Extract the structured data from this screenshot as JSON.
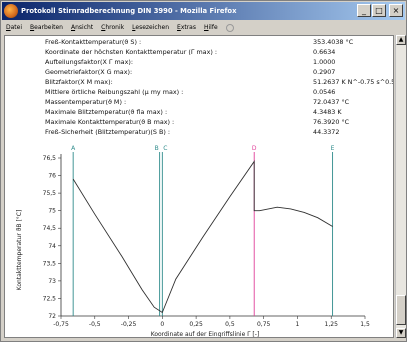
{
  "window": {
    "title": "Protokoll Stirnradberechnung DIN 3990 - Mozilla Firefox",
    "buttons": {
      "minimize": "_",
      "maximize": "□",
      "close": "×"
    }
  },
  "menu": [
    {
      "label": "Datei",
      "ul": "D",
      "rest": "atei"
    },
    {
      "label": "Bearbeiten",
      "ul": "B",
      "rest": "earbeiten"
    },
    {
      "label": "Ansicht",
      "ul": "A",
      "rest": "nsicht"
    },
    {
      "label": "Chronik",
      "ul": "C",
      "rest": "hronik"
    },
    {
      "label": "Lesezeichen",
      "ul": "L",
      "rest": "esezeichen"
    },
    {
      "label": "Extras",
      "ul": "E",
      "rest": "xtras"
    },
    {
      "label": "Hilfe",
      "ul": "H",
      "rest": "ilfe"
    }
  ],
  "results": [
    {
      "label": "Freß-Kontakttemperatur(ϑ S) :",
      "value": "353.4038 °C"
    },
    {
      "label": "Koordinate der höchsten Kontakttemperatur (Γ max) :",
      "value": "0.6634"
    },
    {
      "label": "Aufteilungsfaktor(X Γ max):",
      "value": "1.0000"
    },
    {
      "label": "Geometriefaktor(X G max):",
      "value": "0.2907"
    },
    {
      "label": "Blitzfaktor(X M max):",
      "value": "51.2637 K N^-0.75 s^0.5 m^-0.5 mm"
    },
    {
      "label": "Mittlere örtliche Reibungszahl (μ my max) :",
      "value": "0.0546"
    },
    {
      "label": "Massentemperatur(ϑ M) :",
      "value": "72.0437 °C"
    },
    {
      "label": "Maximale Blitztemperatur(ϑ fla max) :",
      "value": "4.3483 K"
    },
    {
      "label": "Maximale Kontakttemperatur(ϑ B max) :",
      "value": "76.3920 °C"
    },
    {
      "label": "Freß-Sicherheit (Blitztemperatur)(S B) :",
      "value": "44.3372"
    }
  ],
  "chart_data": {
    "type": "line",
    "title": "",
    "xlabel": "Koordinate auf der Eingriffslinie Γ [-]",
    "ylabel": "Kontakttemperatur ϑB [°C]",
    "xlim": [
      -0.75,
      1.5
    ],
    "ylim": [
      72,
      76.5
    ],
    "x_ticks": [
      "-0,75",
      "-0,5",
      "-0,25",
      "0",
      "0,25",
      "0,5",
      "0,75",
      "1",
      "1,25",
      "1,5"
    ],
    "x_tick_values": [
      -0.75,
      -0.5,
      -0.25,
      0,
      0.25,
      0.5,
      0.75,
      1,
      1.25,
      1.5
    ],
    "y_ticks": [
      "72",
      "72,5",
      "73",
      "73,5",
      "74",
      "74,5",
      "75",
      "75,5",
      "76",
      "76,5"
    ],
    "y_tick_values": [
      72,
      72.5,
      73,
      73.5,
      74,
      74.5,
      75,
      75.5,
      76,
      76.5
    ],
    "grid": false,
    "markers": [
      {
        "label": "A",
        "x": -0.66,
        "color": "#2e8b8b"
      },
      {
        "label": "B",
        "x": -0.02,
        "color": "#2e8b8b"
      },
      {
        "label": "C",
        "x": 0.0,
        "color": "#2e8b8b"
      },
      {
        "label": "D",
        "x": 0.68,
        "color": "#e0409a"
      },
      {
        "label": "E",
        "x": 1.26,
        "color": "#2e8b8b"
      }
    ],
    "series": [
      {
        "color": "#303030",
        "x": [
          -0.66,
          -0.5,
          -0.3,
          -0.15,
          -0.06,
          0.0,
          0.1,
          0.3,
          0.5,
          0.68,
          0.68,
          0.72,
          0.85,
          0.95,
          1.05,
          1.15,
          1.26
        ],
        "y": [
          75.9,
          74.9,
          73.7,
          72.75,
          72.25,
          72.1,
          73.05,
          74.25,
          75.4,
          76.4,
          75.0,
          75.0,
          75.1,
          75.05,
          74.95,
          74.8,
          74.55
        ]
      }
    ]
  }
}
